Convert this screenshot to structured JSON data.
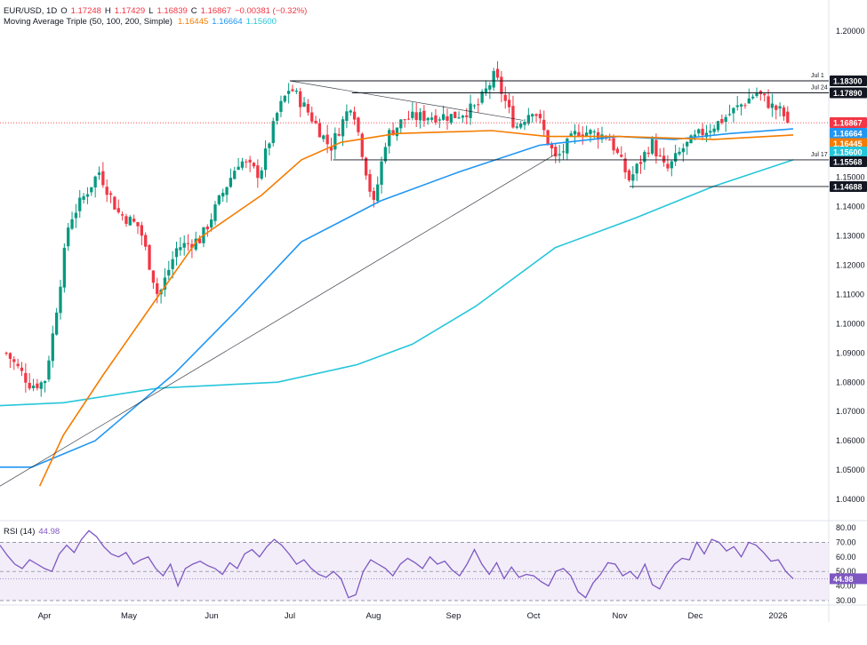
{
  "header": {
    "symbol": "EUR/USD, 1D",
    "o_label": "O",
    "o": "1.17248",
    "h_label": "H",
    "h": "1.17429",
    "l_label": "L",
    "l": "1.16839",
    "c_label": "C",
    "c": "1.16867",
    "change": "−0.00381 (−0.32%)",
    "ma_title": "Moving Average Triple (50, 100, 200, Simple)",
    "ma50": "1.16445",
    "ma100": "1.16664",
    "ma200": "1.15600"
  },
  "rsi_panel": {
    "label": "RSI (14)",
    "value": "44.98"
  },
  "colors": {
    "up": "#089981",
    "down": "#f23645",
    "ma50": "#f57c00",
    "ma100": "#2196f3",
    "ma200": "#26c6da",
    "rsi": "#7e57c2",
    "rsi_band": "#ede7f6"
  },
  "chart_data": [
    {
      "type": "candlestick",
      "title": "EUR/USD, 1D",
      "x_labels": [
        "Apr",
        "May",
        "Jun",
        "Jul",
        "Aug",
        "Sep",
        "Oct",
        "Nov",
        "Dec",
        "2026"
      ],
      "y_ticks": [
        "1.04000",
        "1.05000",
        "1.06000",
        "1.07000",
        "1.08000",
        "1.09000",
        "1.10000",
        "1.11000",
        "1.12000",
        "1.13000",
        "1.14000",
        "1.15000",
        "1.20000"
      ],
      "ylim": [
        1.036,
        1.2055
      ],
      "grid": false,
      "price_keypoints": [
        {
          "date": "Mar 18",
          "close": 1.09
        },
        {
          "date": "Mar 27",
          "close": 1.079
        },
        {
          "date": "Apr 1",
          "close": 1.08
        },
        {
          "date": "Apr 4",
          "close": 1.096
        },
        {
          "date": "Apr 10",
          "close": 1.135
        },
        {
          "date": "Apr 21",
          "close": 1.152
        },
        {
          "date": "Apr 28",
          "close": 1.138
        },
        {
          "date": "May 5",
          "close": 1.133
        },
        {
          "date": "May 12",
          "close": 1.109
        },
        {
          "date": "May 19",
          "close": 1.126
        },
        {
          "date": "May 28",
          "close": 1.129
        },
        {
          "date": "Jun 5",
          "close": 1.144
        },
        {
          "date": "Jun 12",
          "close": 1.156
        },
        {
          "date": "Jun 20",
          "close": 1.151
        },
        {
          "date": "Jun 27",
          "close": 1.172
        },
        {
          "date": "Jul 1",
          "close": 1.181
        },
        {
          "date": "Jul 8",
          "close": 1.172
        },
        {
          "date": "Jul 16",
          "close": 1.16
        },
        {
          "date": "Jul 24",
          "close": 1.176
        },
        {
          "date": "Aug 1",
          "close": 1.14
        },
        {
          "date": "Aug 6",
          "close": 1.164
        },
        {
          "date": "Aug 13",
          "close": 1.17
        },
        {
          "date": "Aug 22",
          "close": 1.171
        },
        {
          "date": "Sep 1",
          "close": 1.171
        },
        {
          "date": "Sep 10",
          "close": 1.174
        },
        {
          "date": "Sep 17",
          "close": 1.185
        },
        {
          "date": "Sep 25",
          "close": 1.167
        },
        {
          "date": "Oct 1",
          "close": 1.174
        },
        {
          "date": "Oct 9",
          "close": 1.156
        },
        {
          "date": "Oct 17",
          "close": 1.166
        },
        {
          "date": "Oct 28",
          "close": 1.164
        },
        {
          "date": "Nov 5",
          "close": 1.149
        },
        {
          "date": "Nov 14",
          "close": 1.162
        },
        {
          "date": "Nov 20",
          "close": 1.152
        },
        {
          "date": "Nov 27",
          "close": 1.16
        },
        {
          "date": "Dec 3",
          "close": 1.165
        },
        {
          "date": "Dec 10",
          "close": 1.169
        },
        {
          "date": "Dec 17",
          "close": 1.174
        },
        {
          "date": "Dec 24",
          "close": 1.179
        },
        {
          "date": "Dec 30",
          "close": 1.174
        },
        {
          "date": "Jan 2",
          "close": 1.1725
        },
        {
          "date": "Jan 5",
          "close": 1.16867
        }
      ],
      "ma_keypoints": {
        "ma50": [
          [
            1.05,
            1.0445
          ],
          [
            1.08,
            1.062
          ],
          [
            1.13,
            1.0825
          ],
          [
            1.17,
            1.098
          ],
          [
            1.25,
            1.129
          ],
          [
            1.33,
            1.144
          ],
          [
            1.38,
            1.156
          ],
          [
            1.43,
            1.162
          ],
          [
            1.5,
            1.165
          ],
          [
            1.62,
            1.166
          ],
          [
            1.69,
            1.164
          ],
          [
            1.78,
            1.164
          ],
          [
            1.9,
            1.163
          ],
          [
            2.0,
            1.1645
          ]
        ],
        "ma100": [
          [
            1.0,
            1.051
          ],
          [
            1.04,
            1.051
          ],
          [
            1.12,
            1.06
          ],
          [
            1.22,
            1.083
          ],
          [
            1.3,
            1.105
          ],
          [
            1.38,
            1.128
          ],
          [
            1.48,
            1.142
          ],
          [
            1.58,
            1.152
          ],
          [
            1.68,
            1.161
          ],
          [
            1.78,
            1.164
          ],
          [
            1.85,
            1.163
          ],
          [
            1.92,
            1.165
          ],
          [
            2.0,
            1.1666
          ]
        ],
        "ma200": [
          [
            1.0,
            1.072
          ],
          [
            1.08,
            1.073
          ],
          [
            1.2,
            1.078
          ],
          [
            1.35,
            1.08
          ],
          [
            1.45,
            1.086
          ],
          [
            1.52,
            1.093
          ],
          [
            1.6,
            1.106
          ],
          [
            1.7,
            1.126
          ],
          [
            1.8,
            1.136
          ],
          [
            1.9,
            1.147
          ],
          [
            2.0,
            1.156
          ]
        ]
      },
      "annotations": {
        "horizontal_levels": [
          {
            "value": 1.183,
            "label": "Jul 1",
            "tag": "1.18300"
          },
          {
            "value": 1.1789,
            "label": "Jul 24",
            "tag": "1.17890"
          },
          {
            "value": 1.156,
            "label": "Jul 17",
            "tag": "1.15600"
          },
          {
            "value": 1.14688,
            "label": "",
            "tag": "1.14688"
          }
        ],
        "price_tags": [
          {
            "value": 1.16867,
            "tag": "1.16867",
            "role": "last"
          },
          {
            "value": 1.16664,
            "tag": "1.16664",
            "role": "ma100"
          },
          {
            "value": 1.16445,
            "tag": "1.16445",
            "role": "ma50"
          },
          {
            "value": 1.156,
            "tag": "1.15600",
            "role": "ma200"
          },
          {
            "value": 1.15568,
            "tag": "1.15568",
            "role": "level"
          }
        ]
      }
    },
    {
      "type": "line",
      "title": "RSI (14)",
      "y_ticks": [
        "30.00",
        "40.00",
        "50.00",
        "60.00",
        "70.00",
        "80.00"
      ],
      "ylim": [
        30,
        80
      ],
      "bands": [
        30,
        50,
        70
      ],
      "last_value": 44.98,
      "values": [
        68,
        61,
        55,
        52,
        58,
        55,
        52,
        50,
        62,
        68,
        63,
        72,
        78,
        74,
        67,
        62,
        60,
        63,
        55,
        58,
        60,
        52,
        47,
        55,
        40,
        52,
        55,
        57,
        54,
        52,
        48,
        56,
        52,
        62,
        65,
        60,
        67,
        72,
        68,
        62,
        55,
        58,
        52,
        48,
        46,
        50,
        45,
        32,
        34,
        50,
        58,
        55,
        52,
        47,
        55,
        59,
        56,
        52,
        60,
        55,
        57,
        51,
        47,
        55,
        65,
        55,
        48,
        56,
        45,
        53,
        46,
        48,
        47,
        43,
        40,
        50,
        52,
        47,
        36,
        32,
        42,
        48,
        56,
        55,
        47,
        50,
        45,
        55,
        41,
        38,
        48,
        55,
        59,
        58,
        70,
        62,
        72,
        70,
        64,
        67,
        60,
        70,
        68,
        63,
        57,
        58,
        50,
        45
      ]
    }
  ]
}
